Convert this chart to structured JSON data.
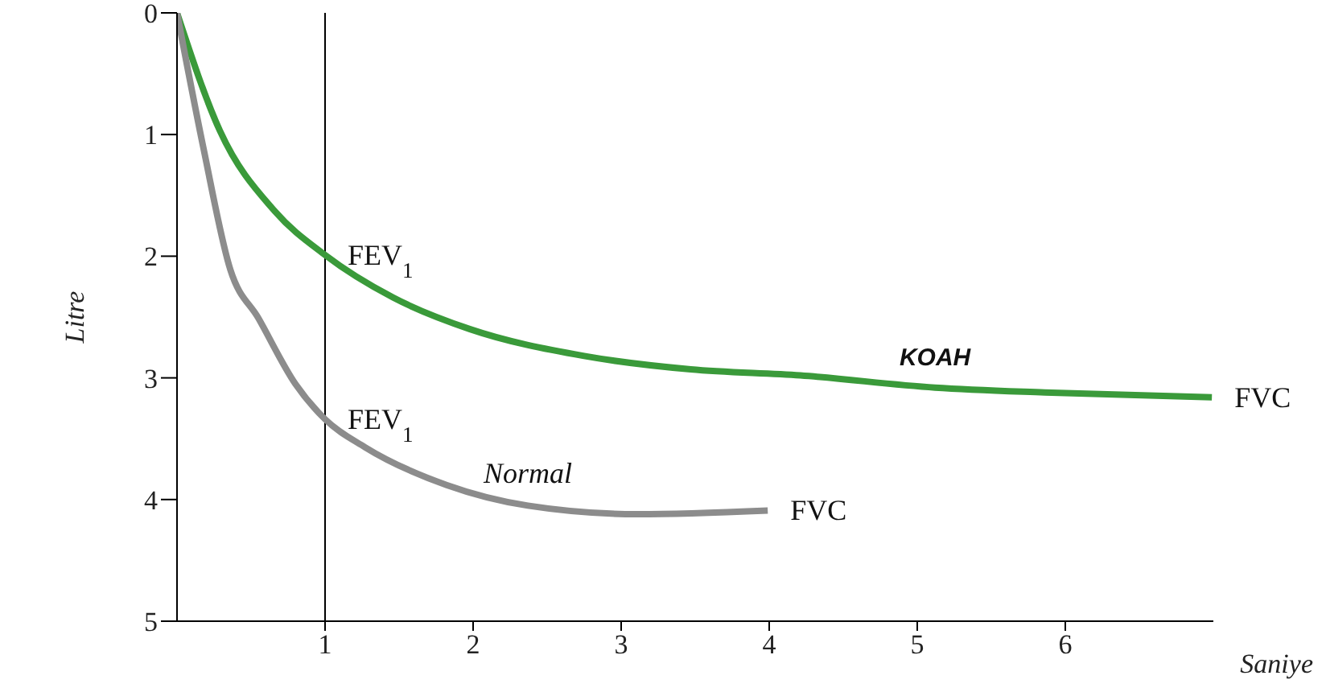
{
  "chart_data": {
    "type": "line",
    "xlabel": "Saniye",
    "ylabel": "Litre",
    "xlim": [
      0,
      7
    ],
    "xticks": [
      1,
      2,
      3,
      4,
      5,
      6
    ],
    "ylim": [
      5,
      0
    ],
    "yticks": [
      0,
      1,
      2,
      3,
      4,
      5
    ],
    "grid": false,
    "marker": "none",
    "line_style": "solid",
    "series": [
      {
        "name": "KOAH",
        "color": "#3a9a3a",
        "x": [
          0,
          0.29,
          0.66,
          1.0,
          1.46,
          1.98,
          2.75,
          3.47,
          4.21,
          5.12,
          5.86,
          6.99
        ],
        "values": [
          0,
          0.97,
          1.63,
          1.99,
          2.34,
          2.6,
          2.82,
          2.93,
          2.98,
          3.08,
          3.12,
          3.16
        ]
      },
      {
        "name": "Normal",
        "color": "#8c8c8c",
        "x": [
          0,
          0.18,
          0.36,
          0.55,
          0.8,
          1.0,
          1.27,
          1.82,
          2.37,
          3.11,
          3.99
        ],
        "values": [
          0,
          1.12,
          2.11,
          2.51,
          3.05,
          3.34,
          3.57,
          3.88,
          4.05,
          4.12,
          4.09
        ]
      }
    ],
    "ref_lines": [
      {
        "axis": "x",
        "value": 1,
        "color": "#000000"
      }
    ],
    "annotations": [
      {
        "text": "FEV$_{1}$",
        "x": 1,
        "y": 1.99
      },
      {
        "text": "FEV$_{1}$",
        "x": 1,
        "y": 3.34
      },
      {
        "text": "FVC",
        "x": 6.99,
        "y": 3.16
      },
      {
        "text": "FVC",
        "x": 3.99,
        "y": 4.09
      }
    ]
  }
}
